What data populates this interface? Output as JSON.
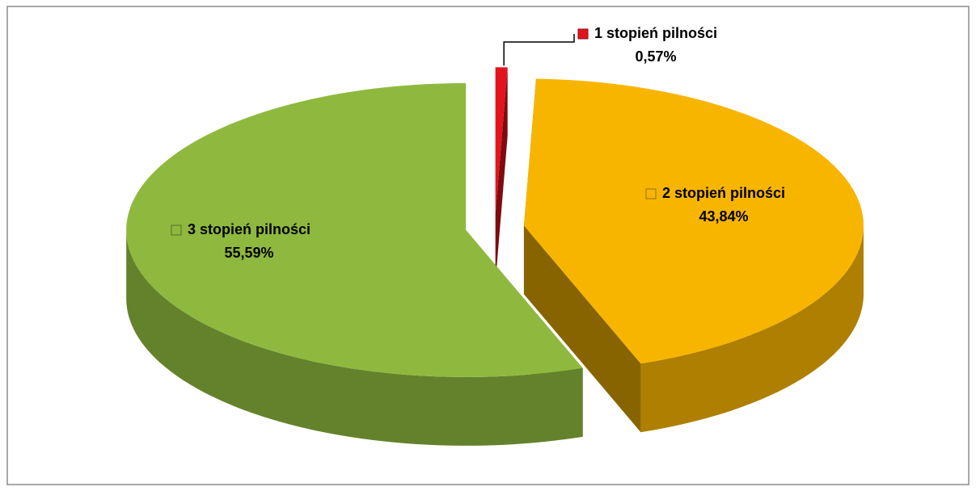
{
  "chart_data": {
    "type": "pie",
    "categories": [
      "1 stopień pilności",
      "2 stopień pilności",
      "3 stopień pilności"
    ],
    "values": [
      0.57,
      43.84,
      55.59
    ],
    "value_labels": [
      "0,57%",
      "43,84%",
      "55,59%"
    ],
    "colors": [
      "#e3141b",
      "#f8b500",
      "#8fb93e"
    ]
  }
}
